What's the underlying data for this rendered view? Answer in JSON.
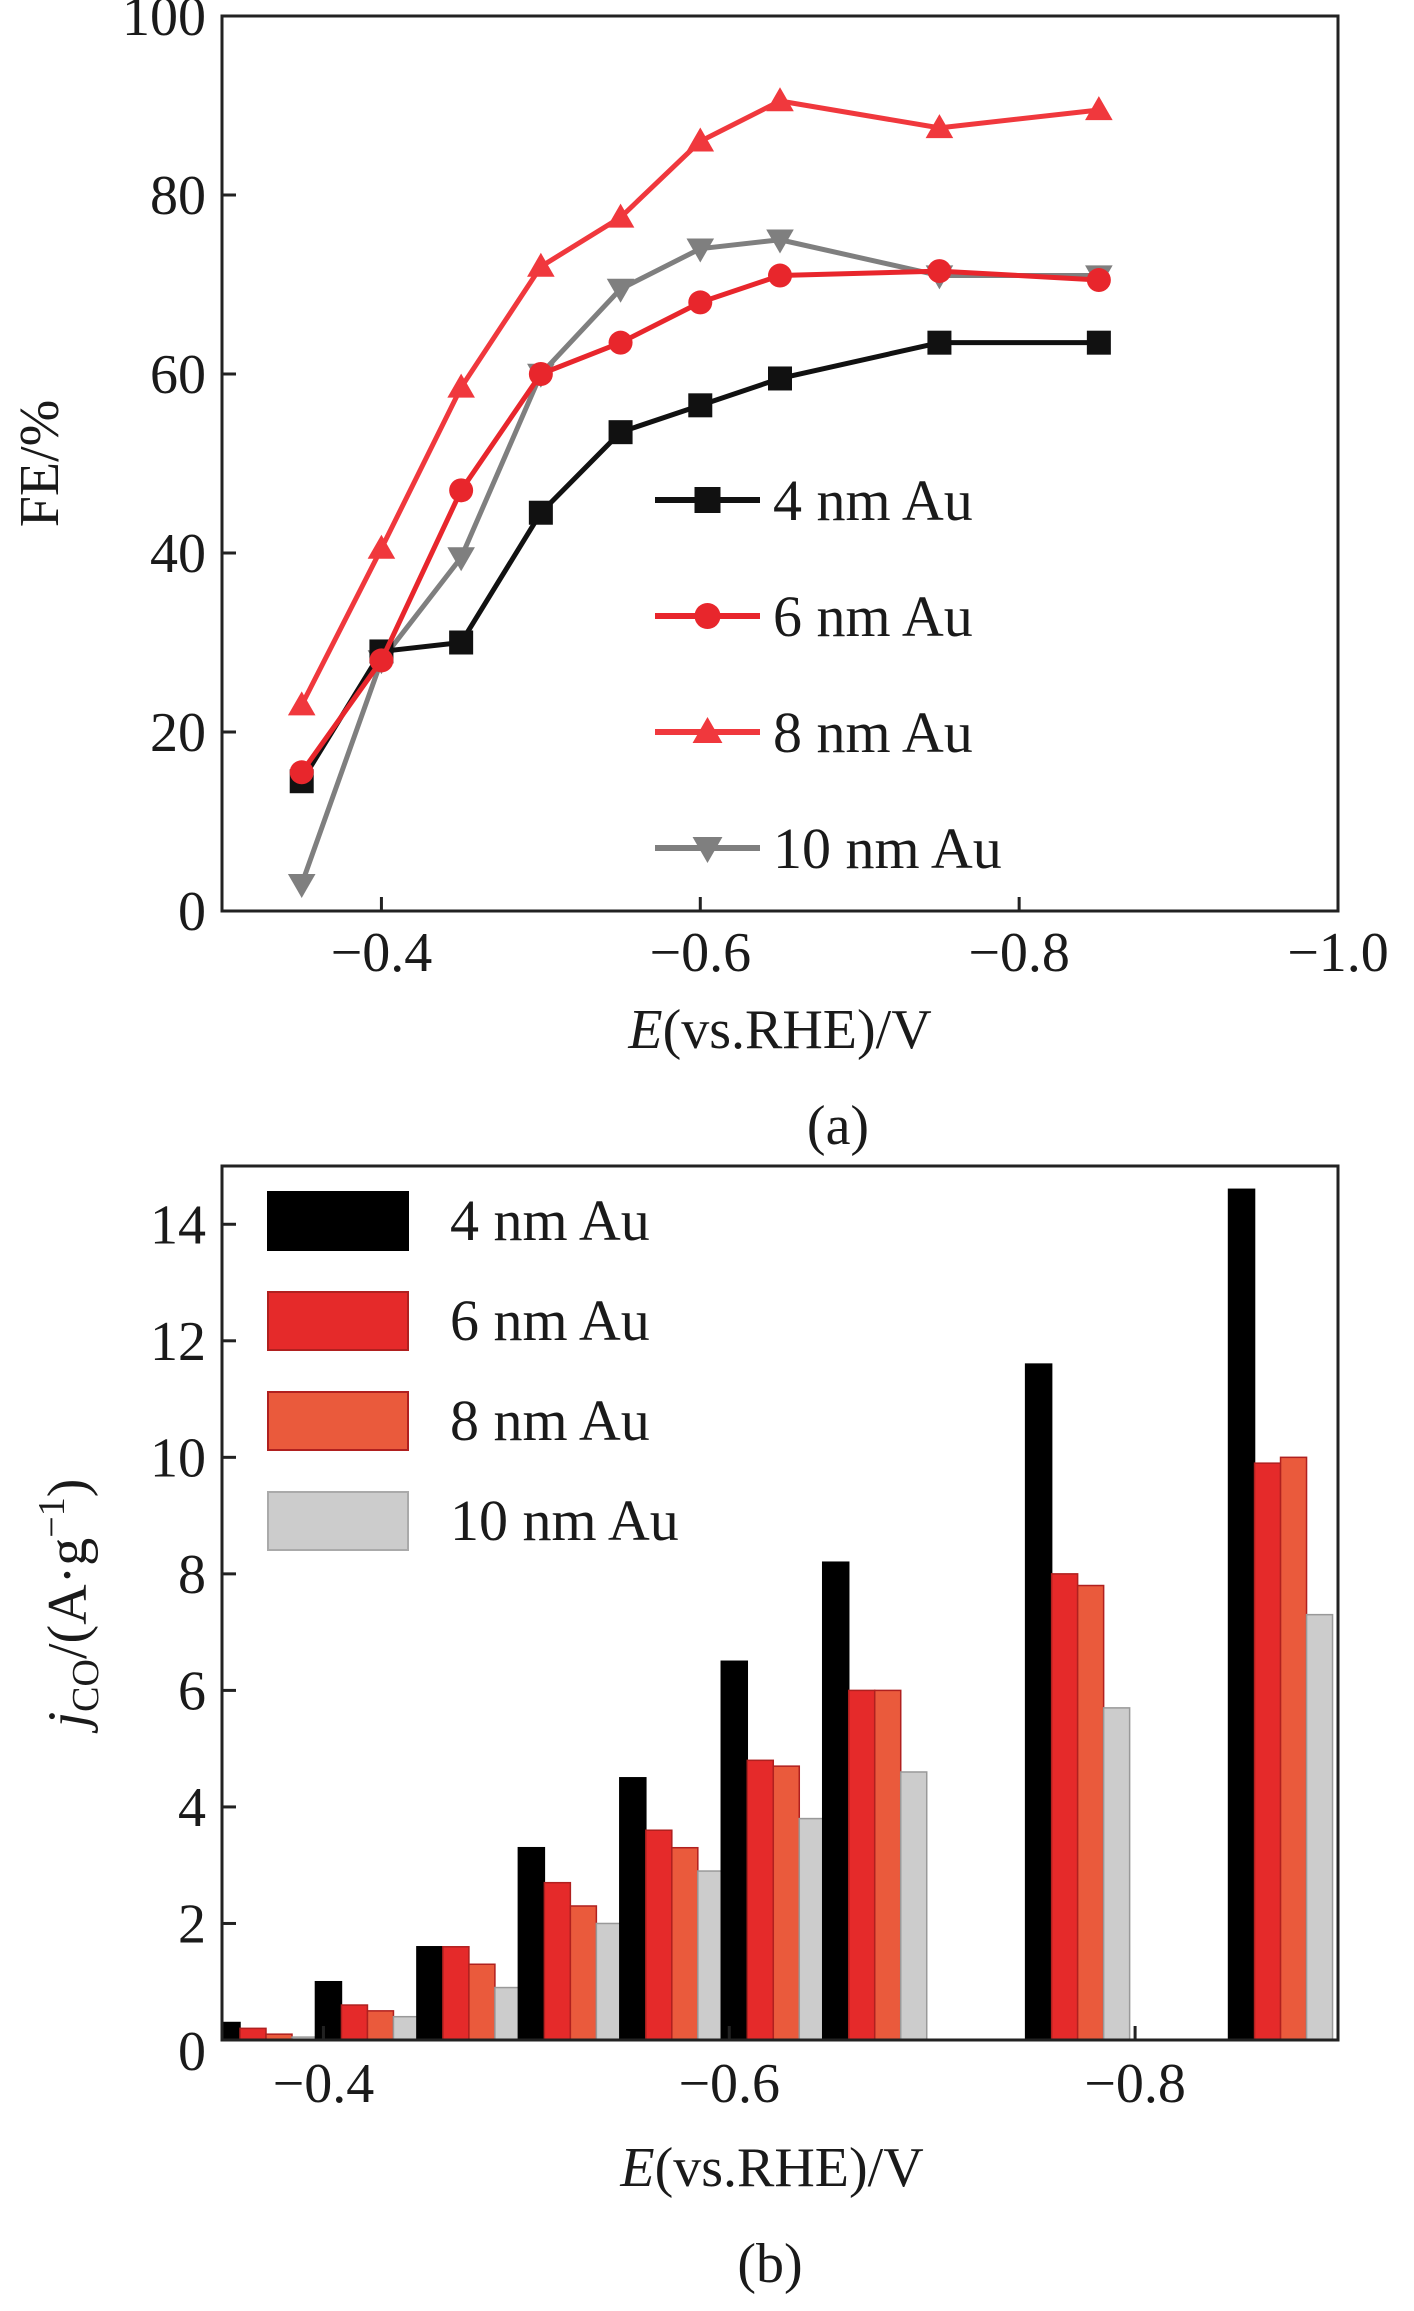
{
  "chart_data": [
    {
      "panel_label": "(a)",
      "type": "line",
      "ylabel": "FE/%",
      "xlabel_italic": "E",
      "xlabel_rest": "(vs.RHE)/V",
      "xlim": [
        -0.3,
        -1.0
      ],
      "ylim": [
        0,
        100
      ],
      "xticks": [
        -0.4,
        -0.6,
        -0.8,
        -1.0
      ],
      "xtick_labels": [
        "−0.4",
        "−0.6",
        "−0.8",
        "−1.0"
      ],
      "yticks": [
        0,
        20,
        40,
        60,
        80,
        100
      ],
      "ytick_labels": [
        "0",
        "20",
        "40",
        "60",
        "80",
        "100"
      ],
      "legend_position": "center-right",
      "x": [
        -0.35,
        -0.4,
        -0.45,
        -0.5,
        -0.55,
        -0.6,
        -0.65,
        -0.75,
        -0.85
      ],
      "series": [
        {
          "name": "4 nm Au",
          "marker": "square",
          "color": "#111111",
          "values": [
            14.5,
            29,
            30,
            44.5,
            53.5,
            56.5,
            59.5,
            63.5,
            63.5
          ]
        },
        {
          "name": "6 nm Au",
          "marker": "circle",
          "color": "#e8262c",
          "values": [
            15.5,
            28,
            47,
            60,
            63.5,
            68,
            71,
            71.5,
            70.5
          ]
        },
        {
          "name": "8 nm Au",
          "marker": "triangle-up",
          "color": "#f0383d",
          "values": [
            23,
            40.5,
            58.5,
            72,
            77.5,
            86,
            90.5,
            87.5,
            89.5
          ]
        },
        {
          "name": "10 nm Au",
          "marker": "triangle-down",
          "color": "#7f7f7f",
          "values": [
            3,
            28,
            39.5,
            60,
            69.5,
            74,
            75,
            71,
            71
          ]
        }
      ]
    },
    {
      "panel_label": "(b)",
      "type": "bar",
      "ylabel_italic": "j",
      "ylabel_sub": "CO",
      "ylabel_rest": "/(A·g",
      "ylabel_sup": "−1",
      "ylabel_close": ")",
      "xlabel_italic": "E",
      "xlabel_rest": "(vs.RHE)/V",
      "xlim": [
        -0.35,
        -0.9
      ],
      "ylim": [
        0,
        15
      ],
      "xticks": [
        -0.4,
        -0.6,
        -0.8
      ],
      "xtick_labels": [
        "−0.4",
        "−0.6",
        "−0.8"
      ],
      "yticks": [
        0,
        2,
        4,
        6,
        8,
        10,
        12,
        14
      ],
      "ytick_labels": [
        "0",
        "2",
        "4",
        "6",
        "8",
        "10",
        "12",
        "14"
      ],
      "legend_position": "top-left",
      "x": [
        -0.35,
        -0.4,
        -0.45,
        -0.5,
        -0.55,
        -0.6,
        -0.65,
        -0.75,
        -0.85
      ],
      "series": [
        {
          "name": "4 nm Au",
          "color": "#000000",
          "values": [
            0.3,
            1.0,
            1.6,
            3.3,
            4.5,
            6.5,
            8.2,
            11.6,
            14.6
          ]
        },
        {
          "name": "6 nm Au",
          "color": "#e52a2a",
          "values": [
            0.2,
            0.6,
            1.6,
            2.7,
            3.6,
            4.8,
            6.0,
            8.0,
            9.9
          ]
        },
        {
          "name": "8 nm Au",
          "color": "#ea5a3c",
          "values": [
            0.1,
            0.5,
            1.3,
            2.3,
            3.3,
            4.7,
            6.0,
            7.8,
            10.0
          ]
        },
        {
          "name": "10 nm Au",
          "color": "#cccccc",
          "values": [
            0.05,
            0.4,
            0.9,
            2.0,
            2.9,
            3.8,
            4.6,
            5.7,
            7.3
          ]
        }
      ]
    }
  ]
}
